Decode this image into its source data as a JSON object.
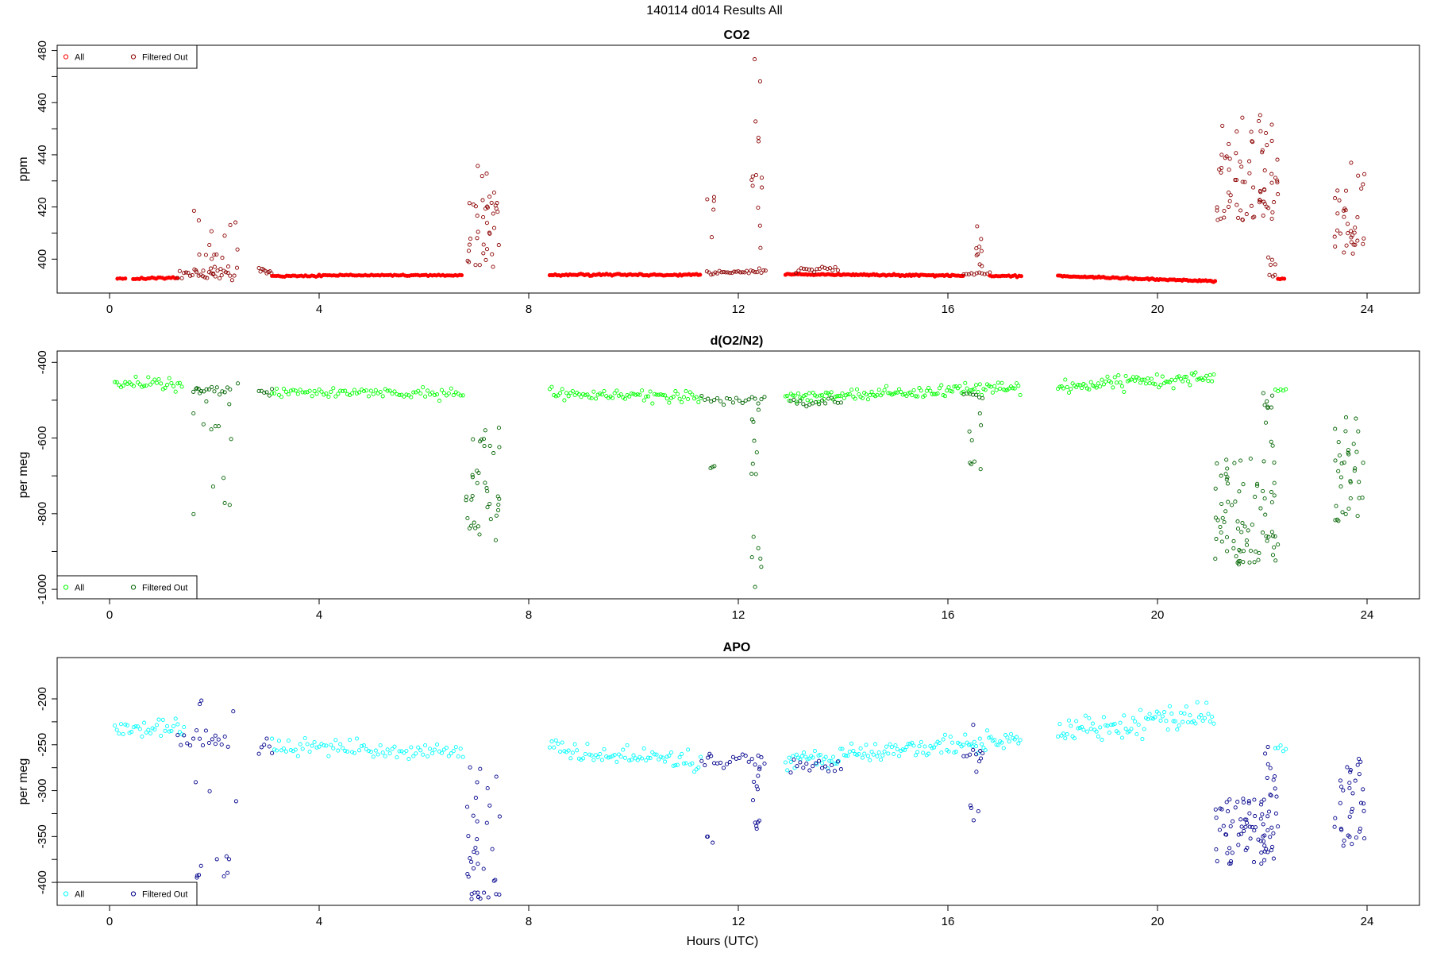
{
  "figure": {
    "title": "140114   d014   Results All",
    "xlabel": "Hours (UTC)"
  },
  "chart_data": [
    {
      "type": "scatter",
      "title": "CO2",
      "xlabel": "",
      "ylabel": "ppm",
      "xlim": [
        -1.0,
        25.0
      ],
      "ylim": [
        387,
        482
      ],
      "xticks": [
        0,
        4,
        8,
        12,
        16,
        20,
        24
      ],
      "yticks": [
        400,
        420,
        440,
        460,
        480
      ],
      "legend_position": "top-left",
      "series": [
        {
          "name": "All",
          "color": "#ff0000",
          "filled": true
        },
        {
          "name": "Filtered Out",
          "color": "#8b0000",
          "filled": false
        }
      ],
      "segments": [
        {
          "x": [
            0.15,
            0.3
          ],
          "y": 392.5,
          "ramp": 0,
          "noise": 0.2,
          "step": 0.05,
          "series": 0
        },
        {
          "x": [
            0.45,
            1.3
          ],
          "y": 392.5,
          "ramp": 0.4,
          "noise": 0.25,
          "step": 0.04,
          "series": 0
        },
        {
          "x": [
            1.3,
            2.4
          ],
          "y": 394,
          "ramp": 0,
          "noise": 1.5,
          "step": 0.04,
          "series": 1
        },
        {
          "x": [
            2.85,
            3.1
          ],
          "y": 396,
          "ramp": -2,
          "noise": 1.0,
          "step": 0.03,
          "series": 1
        },
        {
          "x": [
            3.1,
            4.0
          ],
          "y": 393.5,
          "ramp": 0,
          "noise": 0.25,
          "step": 0.04,
          "series": 0
        },
        {
          "x": [
            4.0,
            6.75
          ],
          "y": 393.8,
          "ramp": 0,
          "noise": 0.25,
          "step": 0.04,
          "series": 0
        },
        {
          "x": [
            8.4,
            11.3
          ],
          "y": 394,
          "ramp": 0,
          "noise": 0.3,
          "step": 0.035,
          "series": 0
        },
        {
          "x": [
            11.4,
            12.55
          ],
          "y": 395,
          "ramp": 0,
          "noise": 1.0,
          "step": 0.04,
          "series": 1
        },
        {
          "x": [
            12.9,
            16.3
          ],
          "y": 394.2,
          "ramp": -0.5,
          "noise": 0.3,
          "step": 0.03,
          "series": 0
        },
        {
          "x": [
            13.1,
            13.9
          ],
          "y": 396,
          "ramp": 0,
          "noise": 1.5,
          "step": 0.05,
          "series": 1
        },
        {
          "x": [
            16.3,
            16.8
          ],
          "y": 394.5,
          "ramp": 0,
          "noise": 0.8,
          "step": 0.05,
          "series": 1
        },
        {
          "x": [
            16.8,
            17.4
          ],
          "y": 393.5,
          "ramp": 0,
          "noise": 0.3,
          "step": 0.04,
          "series": 0
        },
        {
          "x": [
            18.1,
            21.1
          ],
          "y": 393.5,
          "ramp": -2,
          "noise": 0.3,
          "step": 0.03,
          "series": 0
        },
        {
          "x": [
            22.3,
            22.45
          ],
          "y": 392.5,
          "ramp": 0,
          "noise": 0.3,
          "step": 0.04,
          "series": 0
        }
      ],
      "clusters": [
        {
          "x": [
            1.6,
            2.45
          ],
          "ymin": 394,
          "ymax": 434,
          "n": 22,
          "series": 1
        },
        {
          "x": [
            6.8,
            7.45
          ],
          "ymin": 397,
          "ymax": 437,
          "n": 40,
          "series": 1
        },
        {
          "x": [
            11.4,
            11.55
          ],
          "ymin": 398,
          "ymax": 425,
          "n": 5,
          "series": 1
        },
        {
          "x": [
            12.25,
            12.45
          ],
          "ymin": 396,
          "ymax": 477,
          "n": 14,
          "series": 1
        },
        {
          "x": [
            16.4,
            16.65
          ],
          "ymin": 397,
          "ymax": 419,
          "n": 9,
          "series": 1
        },
        {
          "x": [
            21.1,
            22.3
          ],
          "ymin": 415,
          "ymax": 456,
          "n": 75,
          "series": 1
        },
        {
          "x": [
            22.1,
            22.25
          ],
          "ymin": 393,
          "ymax": 418,
          "n": 8,
          "series": 1
        },
        {
          "x": [
            23.35,
            23.95
          ],
          "ymin": 402,
          "ymax": 437,
          "n": 35,
          "series": 1
        }
      ]
    },
    {
      "type": "scatter",
      "title": "d(O2/N2)",
      "xlabel": "",
      "ylabel": "per meg",
      "xlim": [
        -1.0,
        25.0
      ],
      "ylim": [
        -1025,
        -370
      ],
      "xticks": [
        0,
        4,
        8,
        12,
        16,
        20,
        24
      ],
      "yticks": [
        -400,
        -600,
        -800,
        -1000
      ],
      "legend_position": "bottom-left",
      "series": [
        {
          "name": "All",
          "color": "#00ff00",
          "filled": false
        },
        {
          "name": "Filtered Out",
          "color": "#006400",
          "filled": false
        }
      ],
      "segments": [
        {
          "x": [
            0.1,
            1.4
          ],
          "y": -455,
          "ramp": 0,
          "noise": 14,
          "step": 0.04,
          "series": 0
        },
        {
          "x": [
            1.6,
            2.3
          ],
          "y": -475,
          "ramp": 0,
          "noise": 8,
          "step": 0.05,
          "series": 1
        },
        {
          "x": [
            2.85,
            3.1
          ],
          "y": -480,
          "ramp": 0,
          "noise": 10,
          "step": 0.05,
          "series": 1
        },
        {
          "x": [
            3.1,
            6.75
          ],
          "y": -475,
          "ramp": -10,
          "noise": 12,
          "step": 0.045,
          "series": 0
        },
        {
          "x": [
            8.4,
            11.3
          ],
          "y": -480,
          "ramp": -15,
          "noise": 14,
          "step": 0.04,
          "series": 0
        },
        {
          "x": [
            11.3,
            12.5
          ],
          "y": -500,
          "ramp": 0,
          "noise": 10,
          "step": 0.06,
          "series": 1
        },
        {
          "x": [
            12.9,
            17.4
          ],
          "y": -495,
          "ramp": 30,
          "noise": 14,
          "step": 0.035,
          "series": 0
        },
        {
          "x": [
            13.0,
            14.0
          ],
          "y": -505,
          "ramp": 0,
          "noise": 10,
          "step": 0.06,
          "series": 1
        },
        {
          "x": [
            16.3,
            16.7
          ],
          "y": -490,
          "ramp": 0,
          "noise": 10,
          "step": 0.06,
          "series": 1
        },
        {
          "x": [
            18.1,
            21.1
          ],
          "y": -465,
          "ramp": 25,
          "noise": 16,
          "step": 0.035,
          "series": 0
        },
        {
          "x": [
            22.25,
            22.45
          ],
          "y": -475,
          "ramp": 0,
          "noise": 10,
          "step": 0.05,
          "series": 0
        }
      ],
      "clusters": [
        {
          "x": [
            1.6,
            2.45
          ],
          "ymin": -820,
          "ymax": -440,
          "n": 16,
          "series": 1
        },
        {
          "x": [
            6.8,
            7.45
          ],
          "ymin": -875,
          "ymax": -570,
          "n": 38,
          "series": 1
        },
        {
          "x": [
            11.4,
            11.55
          ],
          "ymin": -680,
          "ymax": -660,
          "n": 3,
          "series": 1
        },
        {
          "x": [
            12.25,
            12.45
          ],
          "ymin": -1010,
          "ymax": -520,
          "n": 14,
          "series": 1
        },
        {
          "x": [
            16.4,
            16.65
          ],
          "ymin": -690,
          "ymax": -520,
          "n": 8,
          "series": 1
        },
        {
          "x": [
            21.1,
            22.3
          ],
          "ymin": -935,
          "ymax": -650,
          "n": 80,
          "series": 1
        },
        {
          "x": [
            22.0,
            22.25
          ],
          "ymin": -650,
          "ymax": -470,
          "n": 10,
          "series": 1
        },
        {
          "x": [
            23.35,
            23.95
          ],
          "ymin": -820,
          "ymax": -540,
          "n": 35,
          "series": 1
        }
      ]
    },
    {
      "type": "scatter",
      "title": "APO",
      "xlabel": "Hours (UTC)",
      "ylabel": "per meg",
      "xlim": [
        -1.0,
        25.0
      ],
      "ylim": [
        -425,
        -155
      ],
      "xticks": [
        0,
        4,
        8,
        12,
        16,
        20,
        24
      ],
      "yticks": [
        -200,
        -250,
        -300,
        -350,
        -400
      ],
      "legend_position": "bottom-left",
      "series": [
        {
          "name": "All",
          "color": "#00ffff",
          "filled": false
        },
        {
          "name": "Filtered Out",
          "color": "#00008b",
          "filled": false
        }
      ],
      "segments": [
        {
          "x": [
            0.1,
            1.45
          ],
          "y": -232,
          "ramp": 0,
          "noise": 10,
          "step": 0.04,
          "series": 0
        },
        {
          "x": [
            1.3,
            2.3
          ],
          "y": -240,
          "ramp": -10,
          "noise": 10,
          "step": 0.06,
          "series": 1
        },
        {
          "x": [
            2.85,
            3.1
          ],
          "y": -250,
          "ramp": 0,
          "noise": 12,
          "step": 0.05,
          "series": 1
        },
        {
          "x": [
            3.1,
            6.75
          ],
          "y": -250,
          "ramp": -10,
          "noise": 8,
          "step": 0.045,
          "series": 0
        },
        {
          "x": [
            8.4,
            11.3
          ],
          "y": -255,
          "ramp": -15,
          "noise": 10,
          "step": 0.04,
          "series": 0
        },
        {
          "x": [
            11.3,
            12.5
          ],
          "y": -268,
          "ramp": 0,
          "noise": 8,
          "step": 0.06,
          "series": 1
        },
        {
          "x": [
            12.9,
            17.4
          ],
          "y": -268,
          "ramp": 25,
          "noise": 10,
          "step": 0.035,
          "series": 0
        },
        {
          "x": [
            13.0,
            14.0
          ],
          "y": -272,
          "ramp": 0,
          "noise": 6,
          "step": 0.06,
          "series": 1
        },
        {
          "x": [
            16.3,
            16.7
          ],
          "y": -260,
          "ramp": 0,
          "noise": 8,
          "step": 0.06,
          "series": 1
        },
        {
          "x": [
            18.1,
            21.1
          ],
          "y": -238,
          "ramp": 20,
          "noise": 13,
          "step": 0.035,
          "series": 0
        },
        {
          "x": [
            22.25,
            22.45
          ],
          "y": -255,
          "ramp": 0,
          "noise": 6,
          "step": 0.05,
          "series": 0
        }
      ],
      "clusters": [
        {
          "x": [
            1.6,
            2.45
          ],
          "ymin": -395,
          "ymax": -175,
          "n": 16,
          "series": 1
        },
        {
          "x": [
            6.8,
            7.45
          ],
          "ymin": -418,
          "ymax": -270,
          "n": 38,
          "series": 1
        },
        {
          "x": [
            11.4,
            11.55
          ],
          "ymin": -358,
          "ymax": -212,
          "n": 4,
          "series": 1
        },
        {
          "x": [
            12.25,
            12.45
          ],
          "ymin": -342,
          "ymax": -265,
          "n": 12,
          "series": 1
        },
        {
          "x": [
            16.4,
            16.65
          ],
          "ymin": -333,
          "ymax": -215,
          "n": 8,
          "series": 1
        },
        {
          "x": [
            21.1,
            22.3
          ],
          "ymin": -380,
          "ymax": -300,
          "n": 80,
          "series": 1
        },
        {
          "x": [
            22.0,
            22.25
          ],
          "ymin": -305,
          "ymax": -245,
          "n": 8,
          "series": 1
        },
        {
          "x": [
            23.35,
            23.95
          ],
          "ymin": -362,
          "ymax": -262,
          "n": 35,
          "series": 1
        }
      ]
    }
  ]
}
